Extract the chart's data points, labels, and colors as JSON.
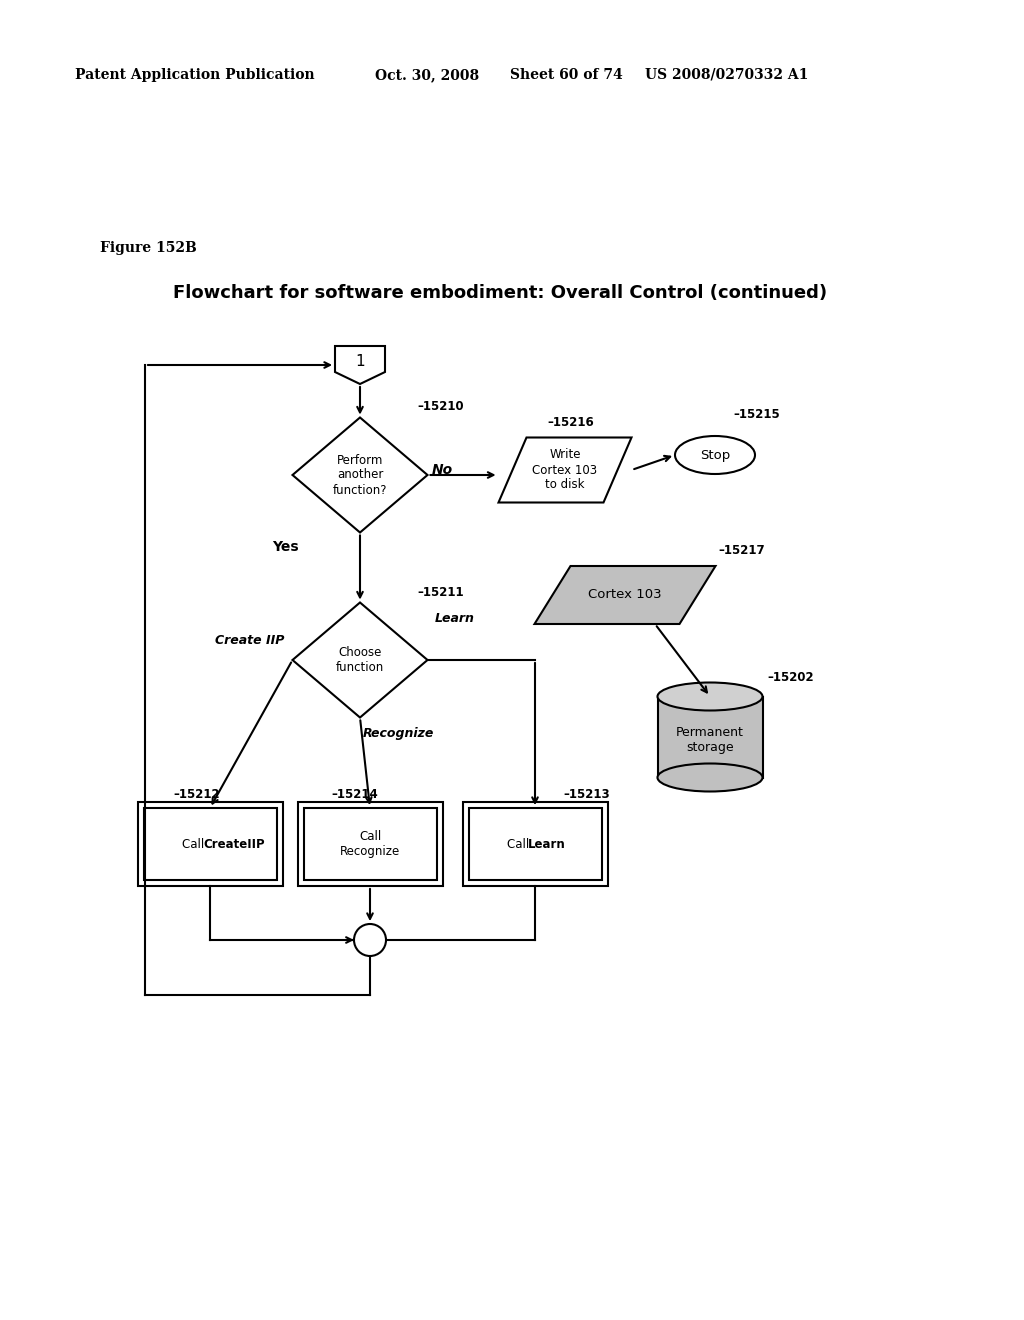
{
  "bg_color": "#ffffff",
  "patent_header": "Patent Application Publication",
  "patent_date": "Oct. 30, 2008",
  "patent_sheet": "Sheet 60 of 74",
  "patent_number": "US 2008/0270332 A1",
  "figure_label": "Figure 152B",
  "title_line1": "Flowchart for software embodiment: Overall Control (continued)",
  "node1_label": "1",
  "diamond1_id": "15210",
  "no_label": "No",
  "write_label": "Write\nCortex 103\nto disk",
  "write_id": "15216",
  "stop_label": "Stop",
  "stop_id": "15215",
  "yes_label": "Yes",
  "cortex_label": "Cortex 103",
  "cortex_id": "15217",
  "storage_label": "Permanent\nstorage",
  "storage_id": "15202",
  "diamond2_id": "15211",
  "learn_label": "Learn",
  "createiip_label": "Create IIP",
  "recognize_label": "Recognize",
  "box1_id": "15212",
  "box2_id": "15214",
  "box3_id": "15213",
  "gray_fill": "#c0c0c0",
  "gray_fill2": "#d0d0d0"
}
